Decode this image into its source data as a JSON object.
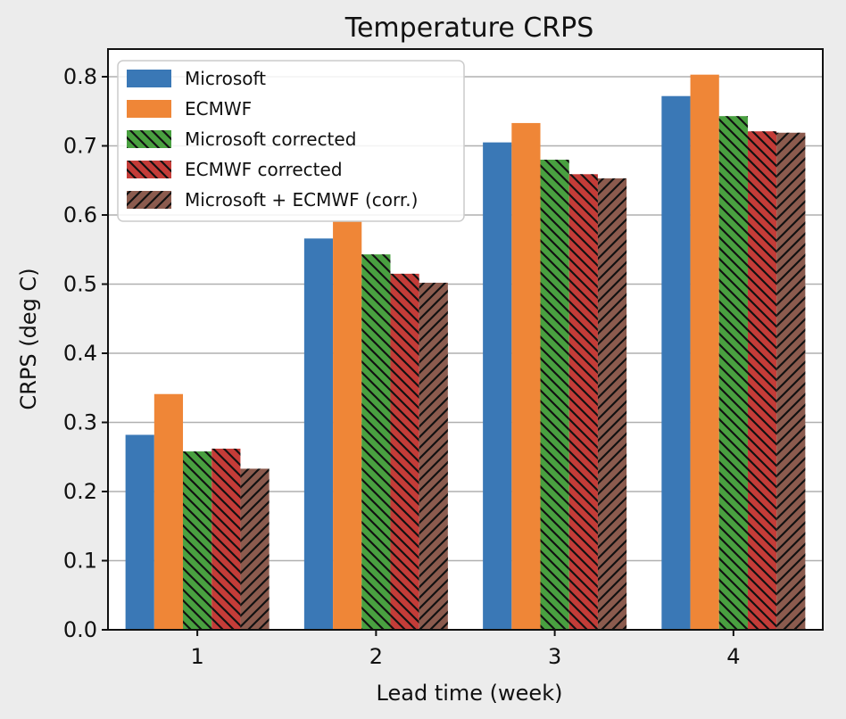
{
  "chart_data": {
    "type": "bar",
    "title": "Temperature CRPS",
    "xlabel": "Lead time (week)",
    "ylabel": "CRPS (deg C)",
    "categories": [
      "1",
      "2",
      "3",
      "4"
    ],
    "ylim": [
      0,
      0.84
    ],
    "yticks": [
      "0.0",
      "0.1",
      "0.2",
      "0.3",
      "0.4",
      "0.5",
      "0.6",
      "0.7",
      "0.8"
    ],
    "grid": "horizontal",
    "legend_position": "top-left",
    "series": [
      {
        "name": "Microsoft",
        "color": "#3a78b6",
        "hatch": "none",
        "values": [
          0.282,
          0.566,
          0.705,
          0.772
        ]
      },
      {
        "name": "ECMWF",
        "color": "#ef8637",
        "hatch": "none",
        "values": [
          0.341,
          0.591,
          0.733,
          0.803
        ]
      },
      {
        "name": "Microsoft corrected",
        "color": "#49a040",
        "hatch": "backslash",
        "values": [
          0.258,
          0.543,
          0.68,
          0.743
        ]
      },
      {
        "name": "ECMWF corrected",
        "color": "#c43c38",
        "hatch": "backslash",
        "values": [
          0.262,
          0.515,
          0.659,
          0.721
        ]
      },
      {
        "name": "Microsoft + ECMWF (corr.)",
        "color": "#8b5b4e",
        "hatch": "slash",
        "values": [
          0.233,
          0.502,
          0.653,
          0.719
        ]
      }
    ]
  }
}
